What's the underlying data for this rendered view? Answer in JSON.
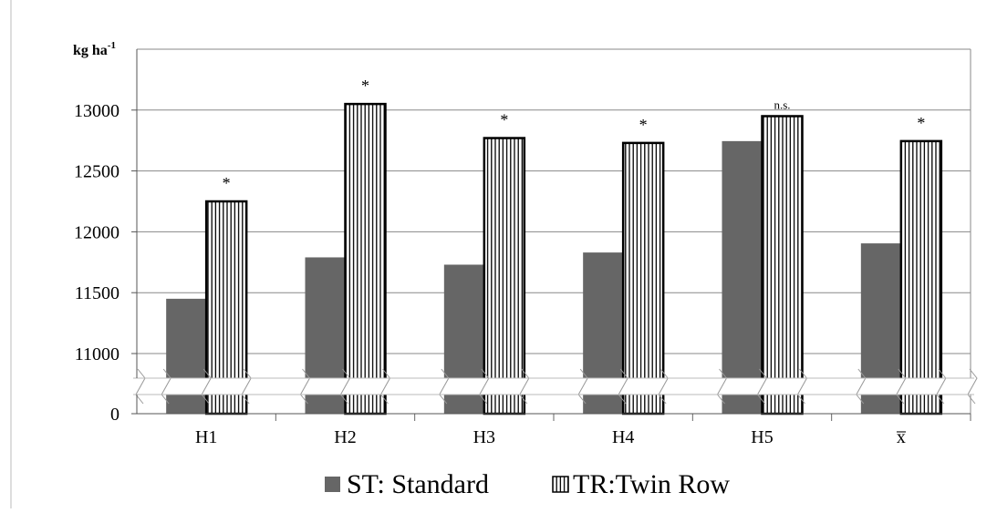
{
  "chart_data": {
    "type": "bar",
    "y_unit_label": {
      "text": "kg ha",
      "sup": "-1"
    },
    "categories": [
      "H1",
      "H2",
      "H3",
      "H4",
      "H5",
      "x̅"
    ],
    "series": [
      {
        "name": "ST: Standard",
        "values": [
          11450,
          11790,
          11730,
          11830,
          12745,
          11905
        ]
      },
      {
        "name": "TR:Twin Row",
        "values": [
          12250,
          13050,
          12770,
          12730,
          12950,
          12745
        ]
      }
    ],
    "annotations": [
      "*",
      "*",
      "*",
      "*",
      "n.s.",
      "*"
    ],
    "y_ticks": [
      "0",
      "11000",
      "11500",
      "12000",
      "12500",
      "13000"
    ],
    "ylim": [
      10500,
      13500
    ],
    "y_axis_break": true,
    "grid": true,
    "legend_position": "bottom",
    "colors": {
      "ST: Standard": "#666666",
      "TR:Twin Row": "#ffffff",
      "stroke": "#000000",
      "grid": "#888888"
    }
  }
}
